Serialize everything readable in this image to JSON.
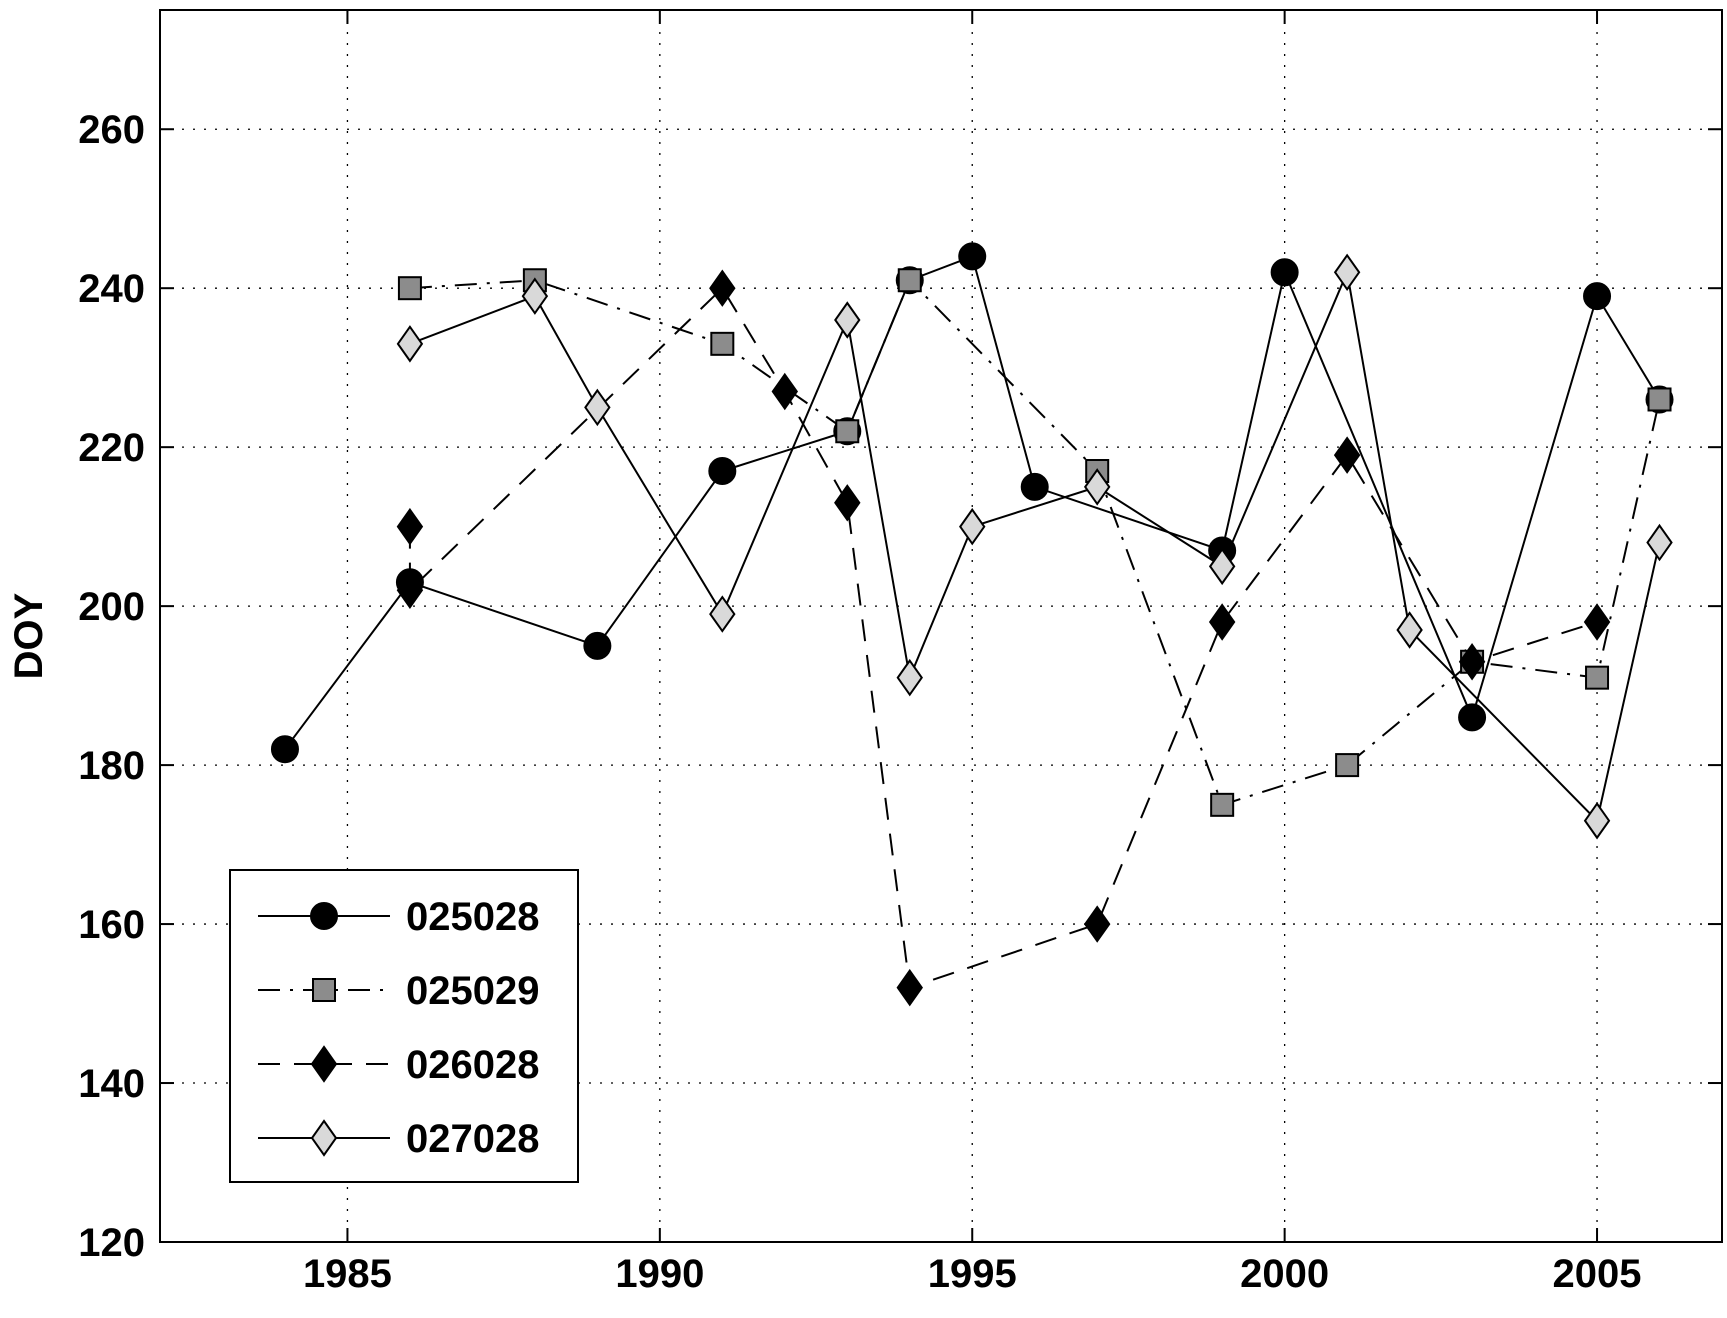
{
  "chart_data": {
    "type": "line",
    "title": "",
    "xlabel": "",
    "ylabel": "DOY",
    "xlim": [
      1982,
      2007
    ],
    "ylim": [
      120,
      275
    ],
    "xticks": [
      1985,
      1990,
      1995,
      2000,
      2005
    ],
    "yticks": [
      120,
      140,
      160,
      180,
      200,
      220,
      240,
      260
    ],
    "grid": true,
    "legend_position": "bottom-left",
    "series": [
      {
        "name": "025028",
        "line": "solid",
        "marker": "circle",
        "marker_color": "#000000",
        "points": [
          [
            1984,
            182
          ],
          [
            1986,
            203
          ],
          [
            1989,
            195
          ],
          [
            1991,
            217
          ],
          [
            1993,
            222
          ],
          [
            1994,
            241
          ],
          [
            1995,
            244
          ],
          [
            1996,
            215
          ],
          [
            1999,
            207
          ],
          [
            2000,
            242
          ],
          [
            2003,
            186
          ],
          [
            2005,
            239
          ],
          [
            2006,
            226
          ]
        ]
      },
      {
        "name": "025029",
        "line": "dashdot",
        "marker": "square",
        "marker_color": "#8c8c8c",
        "points": [
          [
            1986,
            240
          ],
          [
            1988,
            241
          ],
          [
            1991,
            233
          ],
          [
            1993,
            222
          ],
          [
            1994,
            241
          ],
          [
            1997,
            217
          ],
          [
            1999,
            175
          ],
          [
            2001,
            180
          ],
          [
            2003,
            193
          ],
          [
            2005,
            191
          ],
          [
            2006,
            226
          ]
        ]
      },
      {
        "name": "026028",
        "line": "dashed",
        "marker": "diamond",
        "marker_color": "#000000",
        "points": [
          [
            1986,
            210
          ],
          [
            1986,
            202
          ],
          [
            1991,
            240
          ],
          [
            1992,
            227
          ],
          [
            1993,
            213
          ],
          [
            1994,
            152
          ],
          [
            1997,
            160
          ],
          [
            1999,
            198
          ],
          [
            2001,
            219
          ],
          [
            2003,
            193
          ],
          [
            2005,
            198
          ]
        ]
      },
      {
        "name": "027028",
        "line": "solid",
        "marker": "diamond",
        "marker_color": "#d9d9d9",
        "points": [
          [
            1986,
            233
          ],
          [
            1988,
            239
          ],
          [
            1989,
            225
          ],
          [
            1991,
            199
          ],
          [
            1993,
            236
          ],
          [
            1994,
            191
          ],
          [
            1995,
            210
          ],
          [
            1997,
            215
          ],
          [
            1999,
            205
          ],
          [
            2001,
            242
          ],
          [
            2002,
            197
          ],
          [
            2005,
            173
          ],
          [
            2006,
            208
          ]
        ]
      }
    ]
  }
}
